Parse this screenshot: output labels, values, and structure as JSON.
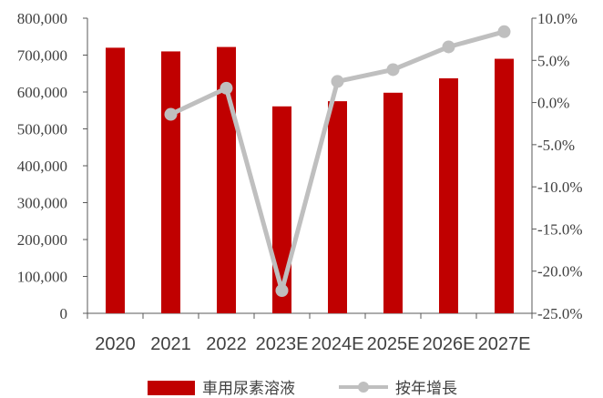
{
  "chart_data": {
    "type": "bar",
    "categories": [
      "2020",
      "2021",
      "2022",
      "2023E",
      "2024E",
      "2025E",
      "2026E",
      "2027E"
    ],
    "series": [
      {
        "name": "車用尿素溶液",
        "type": "bar",
        "axis": "left",
        "values": [
          720000,
          710000,
          722000,
          561000,
          575000,
          598000,
          637000,
          690000
        ]
      },
      {
        "name": "按年增長",
        "type": "line",
        "axis": "right",
        "values": [
          null,
          -1.4,
          1.7,
          -22.3,
          2.5,
          3.9,
          6.6,
          8.4
        ]
      }
    ],
    "y_left": {
      "ylim": [
        0,
        800000
      ],
      "ticks": [
        0,
        100000,
        200000,
        300000,
        400000,
        500000,
        600000,
        700000,
        800000
      ],
      "tick_labels": [
        "0",
        "100,000",
        "200,000",
        "300,000",
        "400,000",
        "500,000",
        "600,000",
        "700,000",
        "800,000"
      ]
    },
    "y_right": {
      "ylim": [
        -25,
        10
      ],
      "ticks": [
        10,
        5,
        0,
        -5,
        -10,
        -15,
        -20,
        -25
      ],
      "tick_labels": [
        "10.0%",
        "5.0%",
        "0.0%",
        "-5.0%",
        "-10.0%",
        "-15.0%",
        "-20.0%",
        "-25.0%"
      ]
    },
    "grid": false,
    "legend_position": "bottom",
    "colors": {
      "bar": "#c00000",
      "line": "#bfbfbf",
      "axis": "#595959"
    }
  }
}
